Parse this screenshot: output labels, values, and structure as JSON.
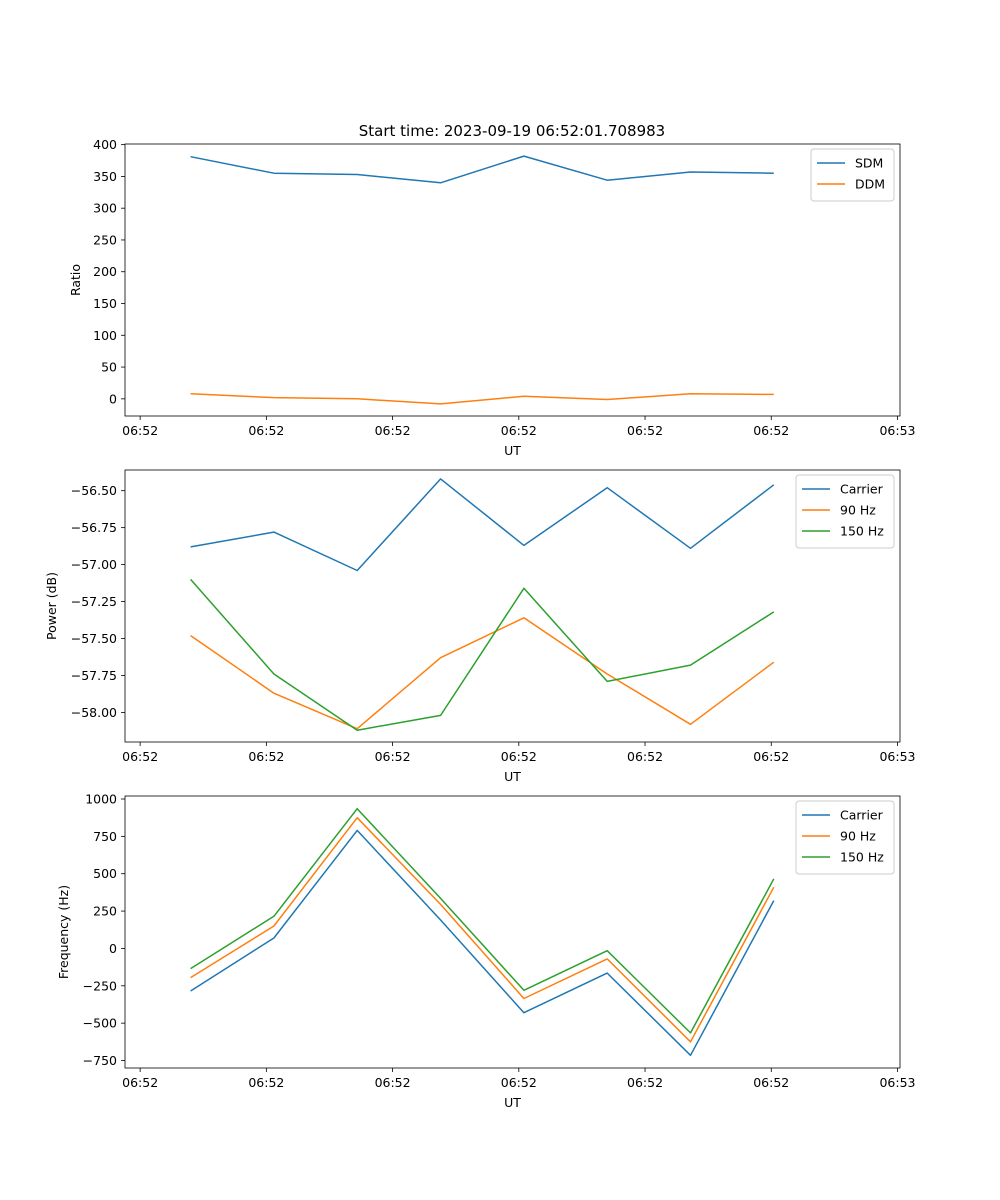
{
  "figure_title": "Start time: 2023-09-19 06:52:01.708983",
  "colors": {
    "blue": "#1f77b4",
    "orange": "#ff7f0e",
    "green": "#2ca02c"
  },
  "chart_data": [
    {
      "type": "line",
      "title": "Start time: 2023-09-19 06:52:01.708983",
      "xlabel": "UT",
      "ylabel": "Ratio",
      "x": [
        0.76,
        1.09,
        1.42,
        1.75,
        2.08,
        2.41,
        2.74,
        3.07
      ],
      "xlim": [
        0.5,
        3.57
      ],
      "x_ticks": [
        0.56,
        1.06,
        1.56,
        2.06,
        2.56,
        3.06,
        3.56
      ],
      "x_tick_labels": [
        "06:52",
        "06:52",
        "06:52",
        "06:52",
        "06:52",
        "06:52",
        "06:53"
      ],
      "ylim": [
        -27,
        401
      ],
      "y_ticks": [
        0,
        50,
        100,
        150,
        200,
        250,
        300,
        350,
        400
      ],
      "y_tick_labels": [
        "0",
        "50",
        "100",
        "150",
        "200",
        "250",
        "300",
        "350",
        "400"
      ],
      "legend_position": "top-right",
      "series": [
        {
          "name": "SDM",
          "color": "#1f77b4",
          "values": [
            381,
            355,
            353,
            340,
            382,
            344,
            357,
            355
          ]
        },
        {
          "name": "DDM",
          "color": "#ff7f0e",
          "values": [
            8,
            2,
            0,
            -8,
            4,
            -1,
            8,
            7
          ]
        }
      ]
    },
    {
      "type": "line",
      "title": "",
      "xlabel": "UT",
      "ylabel": "Power (dB)",
      "x": [
        0.76,
        1.09,
        1.42,
        1.75,
        2.08,
        2.41,
        2.74,
        3.07
      ],
      "xlim": [
        0.5,
        3.57
      ],
      "x_ticks": [
        0.56,
        1.06,
        1.56,
        2.06,
        2.56,
        3.06,
        3.56
      ],
      "x_tick_labels": [
        "06:52",
        "06:52",
        "06:52",
        "06:52",
        "06:52",
        "06:52",
        "06:53"
      ],
      "ylim": [
        -58.2,
        -56.36
      ],
      "y_ticks": [
        -58.0,
        -57.75,
        -57.5,
        -57.25,
        -57.0,
        -56.75,
        -56.5
      ],
      "y_tick_labels": [
        "−58.00",
        "−57.75",
        "−57.50",
        "−57.25",
        "−57.00",
        "−56.75",
        "−56.50"
      ],
      "legend_position": "top-right",
      "series": [
        {
          "name": "Carrier",
          "color": "#1f77b4",
          "values": [
            -56.88,
            -56.78,
            -57.04,
            -56.42,
            -56.87,
            -56.48,
            -56.89,
            -56.46
          ]
        },
        {
          "name": "90 Hz",
          "color": "#ff7f0e",
          "values": [
            -57.48,
            -57.87,
            -58.11,
            -57.63,
            -57.36,
            -57.74,
            -58.08,
            -57.66
          ]
        },
        {
          "name": "150 Hz",
          "color": "#2ca02c",
          "values": [
            -57.1,
            -57.74,
            -58.12,
            -58.02,
            -57.16,
            -57.79,
            -57.68,
            -57.32
          ]
        }
      ]
    },
    {
      "type": "line",
      "title": "",
      "xlabel": "UT",
      "ylabel": "Frequency (Hz)",
      "x": [
        0.76,
        1.09,
        1.42,
        1.75,
        2.08,
        2.41,
        2.74,
        3.07
      ],
      "xlim": [
        0.5,
        3.57
      ],
      "x_ticks": [
        0.56,
        1.06,
        1.56,
        2.06,
        2.56,
        3.06,
        3.56
      ],
      "x_tick_labels": [
        "06:52",
        "06:52",
        "06:52",
        "06:52",
        "06:52",
        "06:52",
        "06:53"
      ],
      "ylim": [
        -800,
        1020
      ],
      "y_ticks": [
        -750,
        -500,
        -250,
        0,
        250,
        500,
        750,
        1000
      ],
      "y_tick_labels": [
        "−750",
        "−500",
        "−250",
        "0",
        "250",
        "500",
        "750",
        "1000"
      ],
      "legend_position": "top-right",
      "series": [
        {
          "name": "Carrier",
          "color": "#1f77b4",
          "values": [
            -285,
            70,
            790,
            190,
            -430,
            -165,
            -715,
            320
          ]
        },
        {
          "name": "90 Hz",
          "color": "#ff7f0e",
          "values": [
            -195,
            150,
            875,
            295,
            -335,
            -70,
            -625,
            410
          ]
        },
        {
          "name": "150 Hz",
          "color": "#2ca02c",
          "values": [
            -135,
            215,
            935,
            335,
            -280,
            -15,
            -565,
            465
          ]
        }
      ]
    }
  ]
}
